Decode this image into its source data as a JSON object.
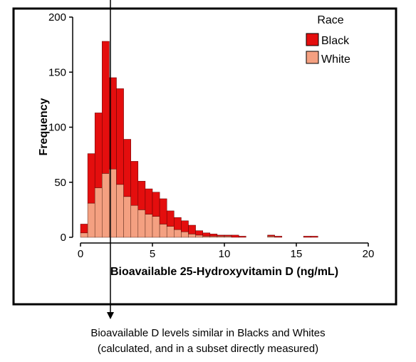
{
  "chart_data": {
    "type": "bar",
    "stacked": true,
    "xlabel": "Bioavailable 25-Hydroxyvitamin D (ng/mL)",
    "ylabel": "Frequency",
    "xlim": [
      0,
      20
    ],
    "ylim": [
      0,
      200
    ],
    "xticks": [
      "0",
      "5",
      "10",
      "15",
      "20"
    ],
    "yticks": [
      "0",
      "50",
      "100",
      "150",
      "200"
    ],
    "bin_width": 0.5,
    "bin_starts": [
      0,
      0.5,
      1,
      1.5,
      2,
      2.5,
      3,
      3.5,
      4,
      4.5,
      5,
      5.5,
      6,
      6.5,
      7,
      7.5,
      8,
      8.5,
      9,
      9.5,
      10,
      10.5,
      11,
      11.5,
      12,
      12.5,
      13,
      13.5,
      14,
      14.5,
      15,
      15.5,
      16
    ],
    "series": [
      {
        "name": "White",
        "color": "#f4a081",
        "values": [
          4,
          31,
          45,
          58,
          62,
          48,
          37,
          29,
          25,
          21,
          19,
          12,
          10,
          7,
          5,
          3,
          2,
          1,
          1,
          1,
          1,
          0,
          0,
          0,
          0,
          0,
          1,
          0,
          0,
          0,
          0,
          0,
          0
        ]
      },
      {
        "name": "Black",
        "color": "#e40e0e",
        "values": [
          8,
          45,
          68,
          120,
          83,
          87,
          52,
          40,
          26,
          23,
          22,
          23,
          14,
          11,
          10,
          8,
          4,
          3,
          2,
          1,
          1,
          2,
          1,
          0,
          0,
          0,
          1,
          1,
          0,
          0,
          0,
          1,
          1
        ]
      }
    ],
    "legend": {
      "title": "Race",
      "entries": [
        "Black",
        "White"
      ],
      "placement": "top-right"
    }
  },
  "caption": {
    "line1": "Bioavailable D levels similar in Blacks and Whites",
    "line2": "(calculated, and in a subset directly measured)"
  }
}
